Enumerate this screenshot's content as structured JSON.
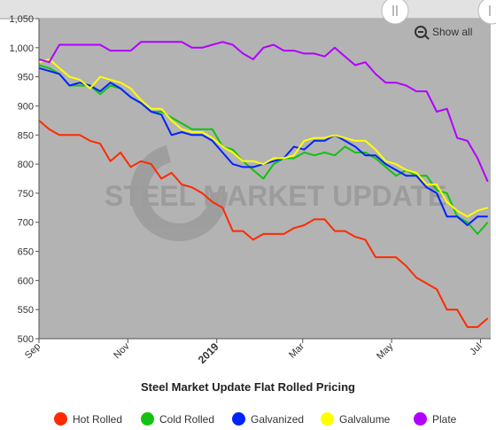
{
  "chart_data": {
    "type": "line",
    "title": "Steel Market Update Flat Rolled Pricing",
    "watermark": "STEEL MARKET UPDATE",
    "show_all_label": "Show all",
    "x_ticks": [
      {
        "label": "Sep",
        "date": "2018-09-01",
        "bold": false
      },
      {
        "label": "Nov",
        "date": "2018-11-01",
        "bold": false
      },
      {
        "label": "2019",
        "date": "2019-01-01",
        "bold": true
      },
      {
        "label": "Mar",
        "date": "2019-03-01",
        "bold": false
      },
      {
        "label": "May",
        "date": "2019-05-01",
        "bold": false
      },
      {
        "label": "Jul",
        "date": "2019-07-01",
        "bold": false
      }
    ],
    "x_range": [
      "2018-09-01",
      "2019-07-08"
    ],
    "x_navigator_range": [
      "2018-08-15",
      "2019-07-08"
    ],
    "y_ticks": [
      500,
      550,
      600,
      650,
      700,
      750,
      800,
      850,
      900,
      950,
      "1,000",
      "1,050"
    ],
    "ylim": [
      500,
      1050
    ],
    "grid": false,
    "legend_position": "bottom",
    "plot_background": "#b3b3b3",
    "navigator_background": "#e2e2e2",
    "series": [
      {
        "name": "Hot Rolled",
        "color": "#ff2a00",
        "dates": [
          "2018-09-01",
          "2018-09-08",
          "2018-09-15",
          "2018-09-22",
          "2018-09-29",
          "2018-10-06",
          "2018-10-13",
          "2018-10-20",
          "2018-10-27",
          "2018-11-03",
          "2018-11-10",
          "2018-11-17",
          "2018-11-24",
          "2018-12-01",
          "2018-12-08",
          "2018-12-15",
          "2018-12-22",
          "2018-12-29",
          "2019-01-05",
          "2019-01-12",
          "2019-01-19",
          "2019-01-26",
          "2019-02-02",
          "2019-02-09",
          "2019-02-16",
          "2019-02-23",
          "2019-03-02",
          "2019-03-09",
          "2019-03-16",
          "2019-03-23",
          "2019-03-30",
          "2019-04-06",
          "2019-04-13",
          "2019-04-20",
          "2019-04-27",
          "2019-05-04",
          "2019-05-11",
          "2019-05-18",
          "2019-05-25",
          "2019-06-01",
          "2019-06-08",
          "2019-06-15",
          "2019-06-22",
          "2019-06-29",
          "2019-07-06"
        ],
        "values": [
          875,
          860,
          850,
          850,
          850,
          840,
          835,
          805,
          820,
          795,
          805,
          800,
          775,
          785,
          765,
          760,
          750,
          735,
          725,
          685,
          685,
          670,
          680,
          680,
          680,
          690,
          695,
          705,
          705,
          685,
          685,
          675,
          670,
          640,
          640,
          640,
          625,
          605,
          595,
          585,
          550,
          550,
          520,
          520,
          535
        ]
      },
      {
        "name": "Cold Rolled",
        "color": "#13c20f",
        "dates": [
          "2018-09-01",
          "2018-09-08",
          "2018-09-15",
          "2018-09-22",
          "2018-09-29",
          "2018-10-06",
          "2018-10-13",
          "2018-10-20",
          "2018-10-27",
          "2018-11-03",
          "2018-11-10",
          "2018-11-17",
          "2018-11-24",
          "2018-12-01",
          "2018-12-08",
          "2018-12-15",
          "2018-12-22",
          "2018-12-29",
          "2019-01-05",
          "2019-01-12",
          "2019-01-19",
          "2019-01-26",
          "2019-02-02",
          "2019-02-09",
          "2019-02-16",
          "2019-02-23",
          "2019-03-02",
          "2019-03-09",
          "2019-03-16",
          "2019-03-23",
          "2019-03-30",
          "2019-04-06",
          "2019-04-13",
          "2019-04-20",
          "2019-04-27",
          "2019-05-04",
          "2019-05-11",
          "2019-05-18",
          "2019-05-25",
          "2019-06-01",
          "2019-06-08",
          "2019-06-15",
          "2019-06-22",
          "2019-06-29",
          "2019-07-06"
        ],
        "values": [
          970,
          965,
          955,
          935,
          935,
          935,
          920,
          935,
          930,
          915,
          905,
          890,
          890,
          880,
          870,
          860,
          860,
          860,
          830,
          825,
          805,
          790,
          775,
          800,
          810,
          810,
          820,
          815,
          820,
          815,
          830,
          820,
          820,
          810,
          795,
          780,
          790,
          780,
          780,
          755,
          750,
          710,
          700,
          680,
          700
        ]
      },
      {
        "name": "Galvanized",
        "color": "#0022ff",
        "dates": [
          "2018-09-01",
          "2018-09-08",
          "2018-09-15",
          "2018-09-22",
          "2018-09-29",
          "2018-10-06",
          "2018-10-13",
          "2018-10-20",
          "2018-10-27",
          "2018-11-03",
          "2018-11-10",
          "2018-11-17",
          "2018-11-24",
          "2018-12-01",
          "2018-12-08",
          "2018-12-15",
          "2018-12-22",
          "2018-12-29",
          "2019-01-05",
          "2019-01-12",
          "2019-01-19",
          "2019-01-26",
          "2019-02-02",
          "2019-02-09",
          "2019-02-16",
          "2019-02-23",
          "2019-03-02",
          "2019-03-09",
          "2019-03-16",
          "2019-03-23",
          "2019-03-30",
          "2019-04-06",
          "2019-04-13",
          "2019-04-20",
          "2019-04-27",
          "2019-05-04",
          "2019-05-11",
          "2019-05-18",
          "2019-05-25",
          "2019-06-01",
          "2019-06-08",
          "2019-06-15",
          "2019-06-22",
          "2019-06-29",
          "2019-07-06"
        ],
        "values": [
          965,
          960,
          955,
          935,
          940,
          935,
          925,
          940,
          930,
          915,
          905,
          890,
          885,
          850,
          855,
          850,
          850,
          840,
          820,
          800,
          795,
          795,
          800,
          805,
          810,
          830,
          825,
          840,
          840,
          850,
          840,
          830,
          815,
          815,
          800,
          790,
          780,
          780,
          760,
          750,
          710,
          710,
          695,
          710,
          710
        ]
      },
      {
        "name": "Galvalume",
        "color": "#ffff00",
        "dates": [
          "2018-09-01",
          "2018-09-08",
          "2018-09-15",
          "2018-09-22",
          "2018-09-29",
          "2018-10-06",
          "2018-10-13",
          "2018-10-20",
          "2018-10-27",
          "2018-11-03",
          "2018-11-10",
          "2018-11-17",
          "2018-11-24",
          "2018-12-01",
          "2018-12-08",
          "2018-12-15",
          "2018-12-22",
          "2018-12-29",
          "2019-01-05",
          "2019-01-12",
          "2019-01-19",
          "2019-01-26",
          "2019-02-02",
          "2019-02-09",
          "2019-02-16",
          "2019-02-23",
          "2019-03-02",
          "2019-03-09",
          "2019-03-16",
          "2019-03-23",
          "2019-03-30",
          "2019-04-06",
          "2019-04-13",
          "2019-04-20",
          "2019-04-27",
          "2019-05-04",
          "2019-05-11",
          "2019-05-18",
          "2019-05-25",
          "2019-06-01",
          "2019-06-08",
          "2019-06-15",
          "2019-06-22",
          "2019-06-29",
          "2019-07-06"
        ],
        "values": [
          975,
          980,
          965,
          950,
          945,
          930,
          950,
          945,
          940,
          930,
          910,
          895,
          895,
          875,
          860,
          855,
          855,
          845,
          830,
          820,
          805,
          805,
          800,
          810,
          810,
          815,
          840,
          845,
          845,
          850,
          845,
          840,
          840,
          825,
          805,
          800,
          790,
          785,
          765,
          765,
          735,
          720,
          710,
          720,
          725
        ]
      },
      {
        "name": "Plate",
        "color": "#b200ff",
        "dates": [
          "2018-09-01",
          "2018-09-08",
          "2018-09-15",
          "2018-09-22",
          "2018-09-29",
          "2018-10-06",
          "2018-10-13",
          "2018-10-20",
          "2018-10-27",
          "2018-11-03",
          "2018-11-10",
          "2018-11-17",
          "2018-11-24",
          "2018-12-01",
          "2018-12-08",
          "2018-12-15",
          "2018-12-22",
          "2018-12-29",
          "2019-01-05",
          "2019-01-12",
          "2019-01-19",
          "2019-01-26",
          "2019-02-02",
          "2019-02-09",
          "2019-02-16",
          "2019-02-23",
          "2019-03-02",
          "2019-03-09",
          "2019-03-16",
          "2019-03-23",
          "2019-03-30",
          "2019-04-06",
          "2019-04-13",
          "2019-04-20",
          "2019-04-27",
          "2019-05-04",
          "2019-05-11",
          "2019-05-18",
          "2019-05-25",
          "2019-06-01",
          "2019-06-08",
          "2019-06-15",
          "2019-06-22",
          "2019-06-29",
          "2019-07-06"
        ],
        "values": [
          980,
          975,
          1005,
          1005,
          1005,
          1005,
          1005,
          995,
          995,
          995,
          1010,
          1010,
          1010,
          1010,
          1010,
          1000,
          1000,
          1005,
          1010,
          1005,
          990,
          980,
          1000,
          1005,
          995,
          995,
          990,
          990,
          985,
          1000,
          985,
          970,
          975,
          955,
          940,
          940,
          935,
          925,
          925,
          890,
          895,
          845,
          840,
          810,
          770
        ]
      }
    ]
  }
}
